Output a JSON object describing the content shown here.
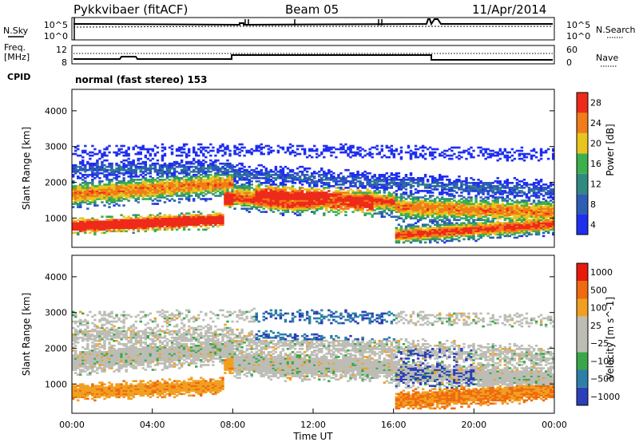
{
  "header": {
    "station": "Pykkvibaer (fitACF)",
    "beam": "Beam 05",
    "date": "11/Apr/2014"
  },
  "nsky_panel": {
    "left_label": "N.Sky",
    "right_label": "N.Search",
    "ticks_left": [
      "10^5",
      "10^0"
    ],
    "ticks_right": [
      "10^5",
      "10^0"
    ]
  },
  "freq_panel": {
    "left_label_1": "Freq.",
    "left_label_2": "[MHz]",
    "ticks_left": [
      "12",
      "8"
    ],
    "right_label": "Nave",
    "ticks_right": [
      "60",
      "0"
    ]
  },
  "cpid": {
    "label": "CPID",
    "text": "normal (fast stereo) 153"
  },
  "chart_data": [
    {
      "type": "heatmap",
      "parameter": "Power",
      "ylabel": "Slant Range [km]",
      "xlabel": "",
      "xlim": [
        "00:00",
        "24:00"
      ],
      "ylim": [
        180,
        4600
      ],
      "y_ticks": [
        "1000",
        "2000",
        "3000",
        "4000"
      ],
      "colorbar": {
        "label": "Power [dB]",
        "ticks": [
          "4",
          "8",
          "12",
          "16",
          "20",
          "24",
          "28"
        ],
        "colors": [
          "#1f2ff0",
          "#2e5db4",
          "#2f8a82",
          "#3bb04d",
          "#e8c41f",
          "#f07d18",
          "#ee2a1a"
        ]
      }
    },
    {
      "type": "heatmap",
      "parameter": "Velocity",
      "ylabel": "Slant Range [km]",
      "xlabel": "Time UT",
      "xlim": [
        "00:00",
        "24:00"
      ],
      "ylim": [
        180,
        4600
      ],
      "y_ticks": [
        "1000",
        "2000",
        "3000",
        "4000"
      ],
      "x_ticks": [
        "00:00",
        "04:00",
        "08:00",
        "12:00",
        "16:00",
        "20:00",
        "00:00"
      ],
      "colorbar": {
        "label": "Velocity [m s^-1]",
        "ticks": [
          "1000",
          "500",
          "100",
          "25",
          "−25",
          "−100",
          "−500",
          "−1000"
        ],
        "colors": [
          "#2a3fb8",
          "#2d7fa8",
          "#3aa64a",
          "#bdbdb6",
          "#bdbdb6",
          "#f0a020",
          "#f06a10",
          "#e81a0a"
        ]
      }
    }
  ]
}
